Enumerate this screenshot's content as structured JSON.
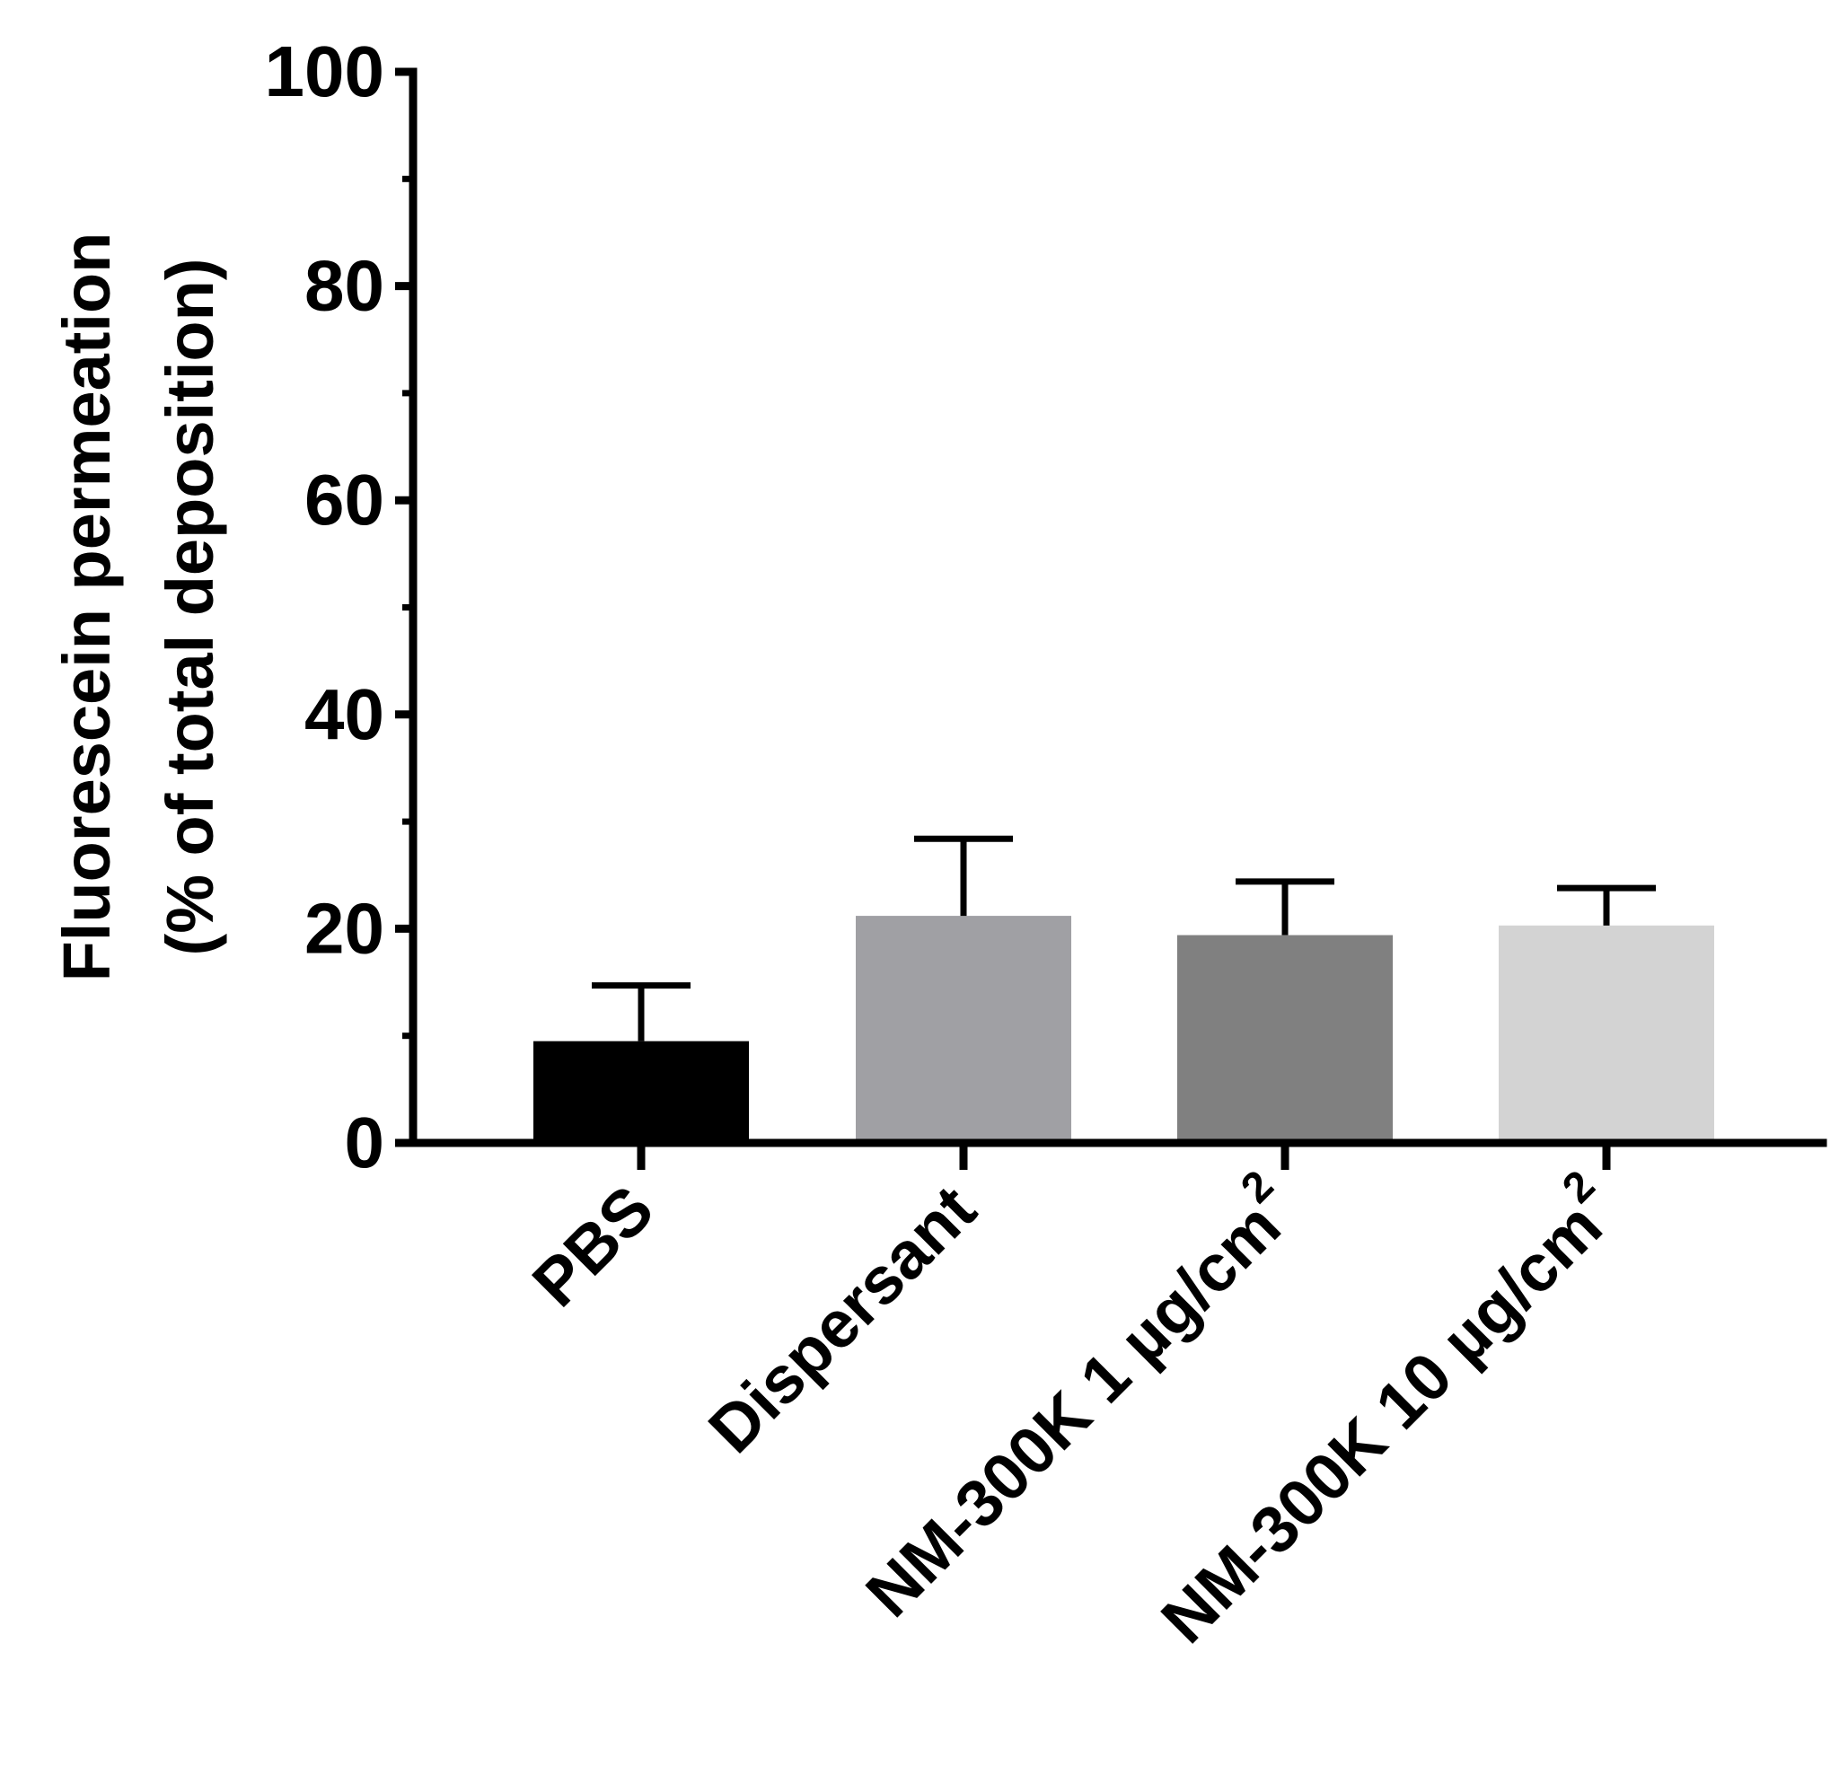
{
  "chart_data": {
    "type": "bar",
    "categories": [
      {
        "label": "PBS",
        "sup": ""
      },
      {
        "label": "Dispersant",
        "sup": ""
      },
      {
        "label": "NM-300K 1 µg/cm",
        "sup": "2"
      },
      {
        "label": "NM-300K 10 µg/cm",
        "sup": "2"
      }
    ],
    "values": [
      9.5,
      21.2,
      19.4,
      20.3
    ],
    "errors": [
      5.2,
      7.2,
      5.0,
      3.5
    ],
    "colors": [
      "#000000",
      "#a0a0a4",
      "#808080",
      "#d3d3d3"
    ],
    "ylabel_line1": "Fluorescein permeation",
    "ylabel_line2": "(% of total deposition)",
    "xlabel": "",
    "ylim": [
      0,
      100
    ],
    "yticks": [
      0,
      20,
      40,
      60,
      80,
      100
    ],
    "yminor_ticks": [
      10,
      30,
      50,
      70,
      90
    ],
    "grid": false,
    "legend": "none"
  }
}
